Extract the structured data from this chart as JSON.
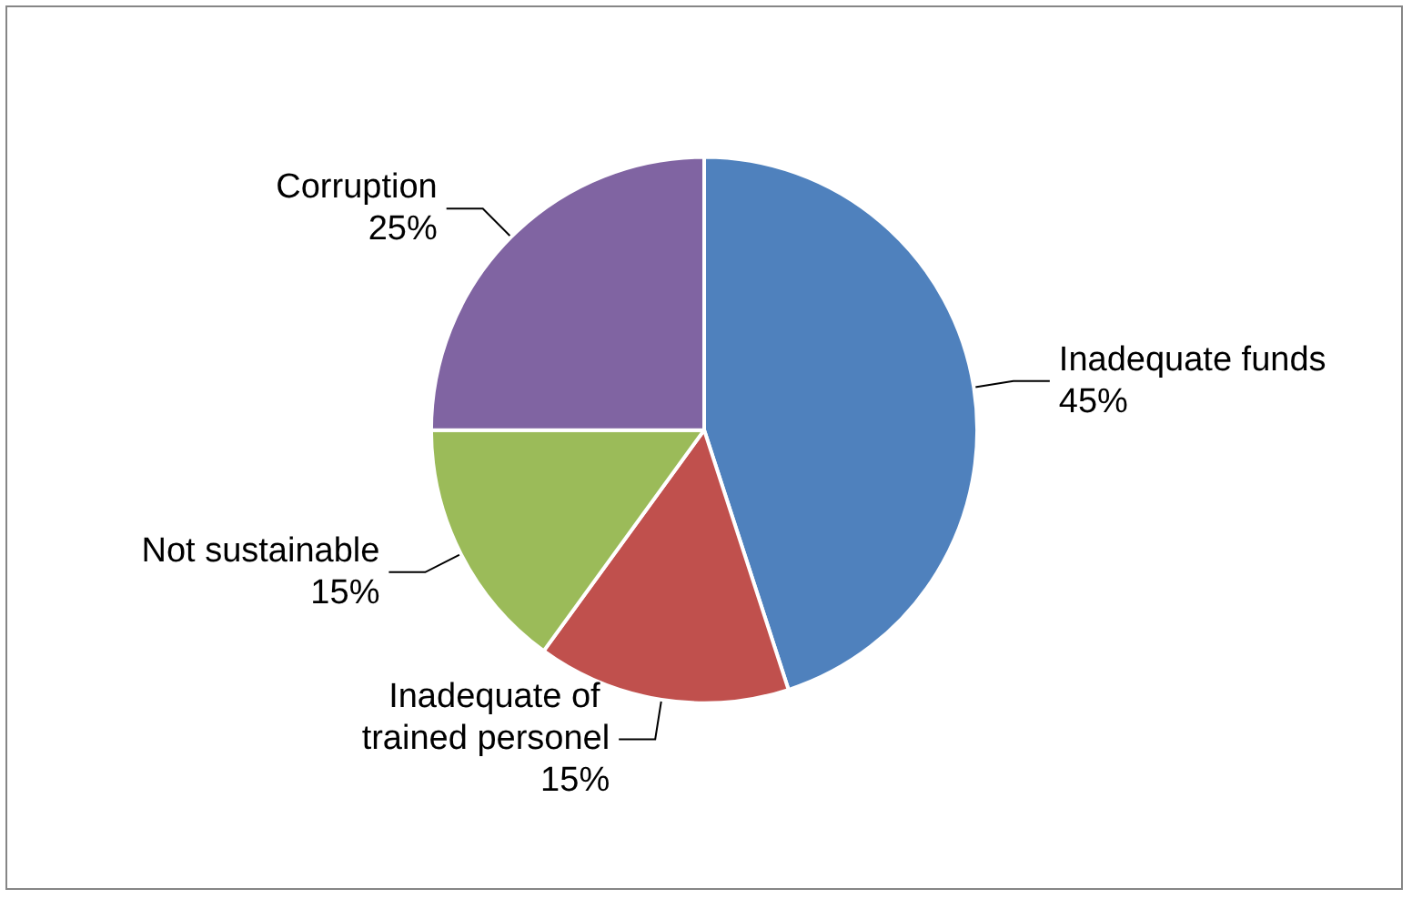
{
  "chart_data": {
    "type": "pie",
    "categories": [
      "Inadequate funds",
      "Inadequate of trained personel",
      "Not sustainable",
      "Corruption"
    ],
    "values": [
      45,
      15,
      15,
      25
    ],
    "value_labels": [
      "45%",
      "15%",
      "15%",
      "25%"
    ],
    "colors": [
      "#4f81bd",
      "#c0504d",
      "#9bbb59",
      "#8064a2"
    ],
    "legend": false
  }
}
